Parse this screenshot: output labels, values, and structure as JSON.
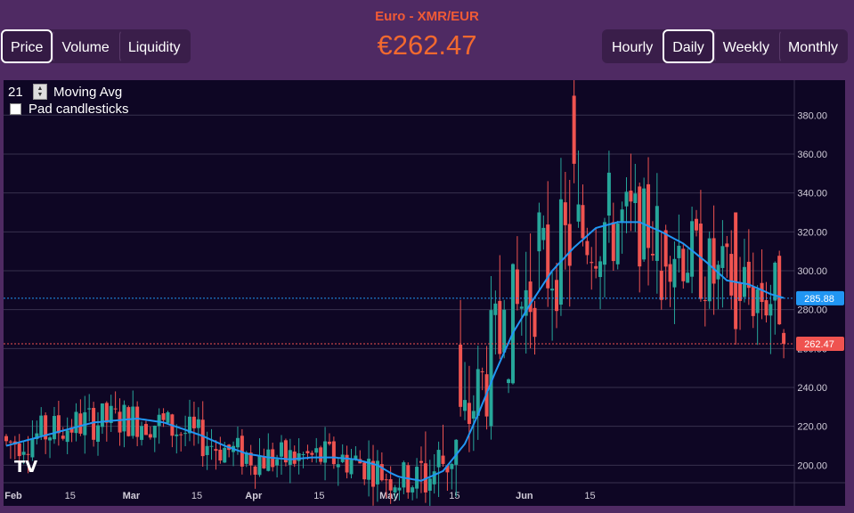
{
  "header": {
    "title": "Euro - XMR/EUR",
    "price": "€262.47"
  },
  "tabs_left": [
    {
      "label": "Price",
      "active": true
    },
    {
      "label": "Volume",
      "active": false
    },
    {
      "label": "Liquidity",
      "active": false
    }
  ],
  "tabs_right": [
    {
      "label": "Hourly",
      "active": false
    },
    {
      "label": "Daily",
      "active": true
    },
    {
      "label": "Weekly",
      "active": false
    },
    {
      "label": "Monthly",
      "active": false
    }
  ],
  "controls": {
    "ma_period": "21",
    "ma_label": "Moving Avg",
    "pad_label": "Pad candlesticks",
    "pad_checked": false
  },
  "colors": {
    "up": "#26a69a",
    "down": "#ef5350",
    "ma_line": "#2196f3",
    "background": "#0e0624",
    "header_bg": "#4f2a63",
    "accent": "#f2692f"
  },
  "chart_data": {
    "type": "candlestick",
    "series": [
      {
        "name": "Price",
        "kind": "candlestick"
      },
      {
        "name": "Moving Avg",
        "kind": "line",
        "period": 21
      }
    ],
    "x_ticks": [
      "Feb",
      "15",
      "Mar",
      "15",
      "Apr",
      "15",
      "May",
      "15",
      "Jun",
      "15"
    ],
    "y_ticks": [
      "200.00",
      "220.00",
      "240.00",
      "260.00",
      "280.00",
      "300.00",
      "320.00",
      "340.00",
      "360.00",
      "380.00"
    ],
    "ylim": [
      191,
      398
    ],
    "price_labels": {
      "ma_last": "285.88",
      "last": "262.47"
    },
    "ma_anchors": [
      [
        0,
        210
      ],
      [
        10,
        216
      ],
      [
        20,
        222
      ],
      [
        30,
        224
      ],
      [
        36,
        222
      ],
      [
        40,
        219
      ],
      [
        45,
        215
      ],
      [
        50,
        210
      ],
      [
        55,
        206
      ],
      [
        60,
        204
      ],
      [
        65,
        203
      ],
      [
        70,
        204
      ],
      [
        75,
        204
      ],
      [
        80,
        203
      ],
      [
        85,
        200
      ],
      [
        88,
        196
      ],
      [
        90,
        194
      ],
      [
        95,
        192
      ],
      [
        100,
        197
      ],
      [
        105,
        211
      ],
      [
        108,
        226
      ],
      [
        112,
        248
      ],
      [
        116,
        268
      ],
      [
        120,
        283
      ],
      [
        125,
        300
      ],
      [
        130,
        312
      ],
      [
        135,
        322
      ],
      [
        140,
        325
      ],
      [
        145,
        325
      ],
      [
        150,
        320
      ],
      [
        155,
        314
      ],
      [
        160,
        305
      ],
      [
        165,
        295
      ],
      [
        170,
        293
      ],
      [
        175,
        288
      ],
      [
        178,
        286
      ]
    ],
    "candles_sample": [
      {
        "day": 104,
        "o": 262,
        "h": 285,
        "l": 225,
        "c": 230
      },
      {
        "day": 114,
        "o": 258,
        "h": 285,
        "l": 255,
        "c": 280
      },
      {
        "day": 122,
        "o": 310,
        "h": 335,
        "l": 290,
        "c": 330
      },
      {
        "day": 130,
        "o": 390,
        "h": 398,
        "l": 345,
        "c": 355
      },
      {
        "day": 139,
        "o": 325,
        "h": 335,
        "l": 300,
        "c": 305
      },
      {
        "day": 150,
        "o": 300,
        "h": 320,
        "l": 280,
        "c": 285
      },
      {
        "day": 167,
        "o": 330,
        "h": 330,
        "l": 262,
        "c": 270
      },
      {
        "day": 178,
        "o": 268,
        "h": 270,
        "l": 255,
        "c": 262.47
      }
    ]
  }
}
